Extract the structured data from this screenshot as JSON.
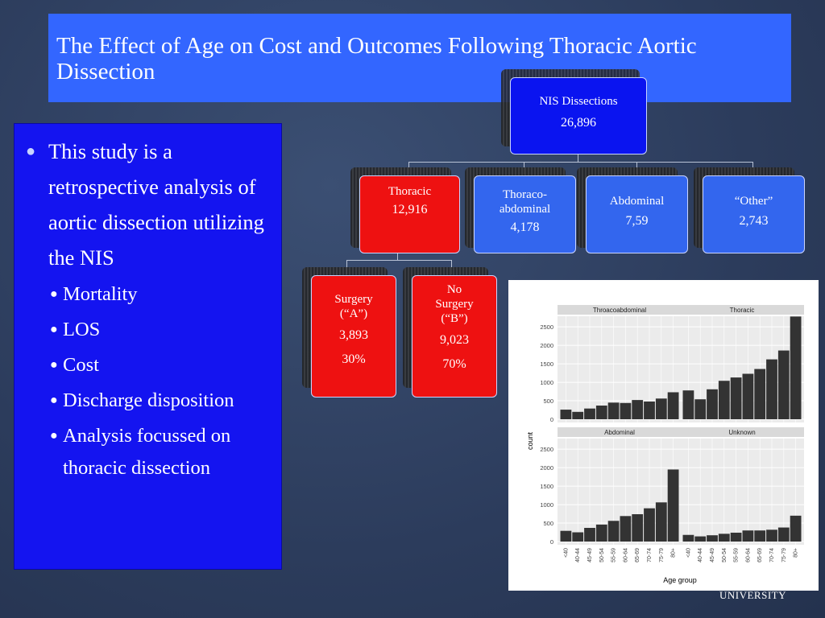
{
  "title": "The Effect of Age on Cost and Outcomes Following Thoracic Aortic Dissection",
  "bullets": {
    "main": "This study is a retrospective analysis of aortic dissection utilizing the NIS",
    "subs": [
      "Mortality",
      "LOS",
      "Cost",
      "Discharge disposition",
      "Analysis focussed on thoracic dissection"
    ]
  },
  "tree": {
    "root": {
      "label": "NIS Dissections",
      "value": "26,896"
    },
    "level1": [
      {
        "label": "Thoracic",
        "value": "12,916"
      },
      {
        "label": "Thoraco-abdominal",
        "value": "4,178"
      },
      {
        "label": "Abdominal",
        "value": "7,59"
      },
      {
        "label": "“Other”",
        "value": "2,743"
      }
    ],
    "level2": [
      {
        "label": "Surgery (“A”)",
        "value": "3,893",
        "pct": "30%"
      },
      {
        "label": "No Surgery (“B”)",
        "value": "9,023",
        "pct": "70%"
      }
    ]
  },
  "footer": "UNIVERSITY",
  "colors": {
    "title_bg": "#3366ff",
    "bullet_bg": "#1414f0",
    "node_blue": "#0a14f0",
    "node_mid": "#3366ee",
    "node_red": "#ee1111"
  },
  "chart_data": {
    "type": "bar",
    "ylabel": "count",
    "xlabel": "Age group",
    "categories": [
      "<40",
      "40-44",
      "45-49",
      "50-54",
      "55-59",
      "60-64",
      "65-69",
      "70-74",
      "75-79",
      "80+"
    ],
    "ylim": [
      0,
      2700
    ],
    "yticks": [
      0,
      500,
      1000,
      1500,
      2000,
      2500
    ],
    "grid": true,
    "panels": [
      {
        "name": "Throacoabdominal",
        "values": [
          260,
          200,
          290,
          370,
          450,
          440,
          520,
          480,
          560,
          730
        ]
      },
      {
        "name": "Thoracic",
        "values": [
          780,
          540,
          810,
          1040,
          1130,
          1230,
          1360,
          1620,
          1860,
          2780
        ]
      },
      {
        "name": "Abdominal",
        "values": [
          290,
          250,
          370,
          460,
          560,
          690,
          740,
          900,
          1060,
          1950
        ]
      },
      {
        "name": "Unknown",
        "values": [
          180,
          140,
          170,
          210,
          240,
          300,
          300,
          320,
          380,
          700
        ]
      }
    ]
  }
}
